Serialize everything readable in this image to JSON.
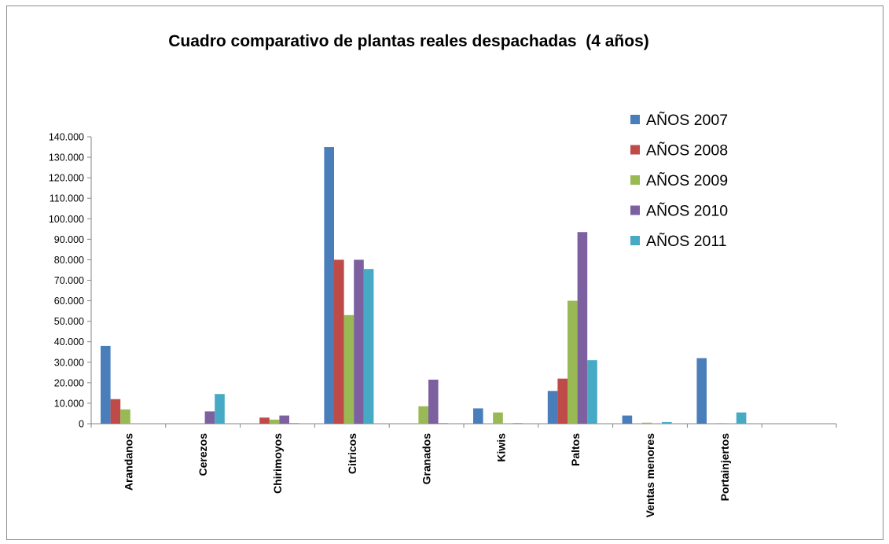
{
  "chart_data": {
    "type": "bar",
    "title": "Cuadro comparativo de plantas reales despachadas  (4 años)",
    "xlabel": "",
    "ylabel": "",
    "ylim": [
      0,
      140000
    ],
    "yticks": [
      0,
      10000,
      20000,
      30000,
      40000,
      50000,
      60000,
      70000,
      80000,
      90000,
      100000,
      110000,
      120000,
      130000,
      140000
    ],
    "ytick_labels": [
      "0",
      "10.000",
      "20.000",
      "30.000",
      "40.000",
      "50.000",
      "60.000",
      "70.000",
      "80.000",
      "90.000",
      "100.000",
      "110.000",
      "120.000",
      "130.000",
      "140.000"
    ],
    "categories": [
      "Arandanos",
      "Cerezos",
      "Chirimoyos",
      "Citricos",
      "Granados",
      "Kiwis",
      "Paltos",
      "Ventas menores",
      "Portainjertos",
      ""
    ],
    "series": [
      {
        "name": "AÑOS 2007",
        "color": "#4a7ebb",
        "values": [
          38000,
          0,
          0,
          135000,
          0,
          7500,
          16000,
          4000,
          32000,
          0
        ]
      },
      {
        "name": "AÑOS 2008",
        "color": "#be4b48",
        "values": [
          12000,
          0,
          3000,
          80000,
          0,
          0,
          22000,
          0,
          0,
          0
        ]
      },
      {
        "name": "AÑOS 2009",
        "color": "#98b954",
        "values": [
          7000,
          0,
          2000,
          53000,
          8500,
          5500,
          60000,
          500,
          300,
          0
        ]
      },
      {
        "name": "AÑOS 2010",
        "color": "#7d60a0",
        "values": [
          0,
          6000,
          4000,
          80000,
          21500,
          0,
          93500,
          0,
          0,
          0
        ]
      },
      {
        "name": "AÑOS 2011",
        "color": "#46aac5",
        "values": [
          0,
          14500,
          300,
          75500,
          300,
          300,
          31000,
          800,
          5500,
          0
        ]
      }
    ],
    "legend_position": "top-right",
    "grid": false
  }
}
